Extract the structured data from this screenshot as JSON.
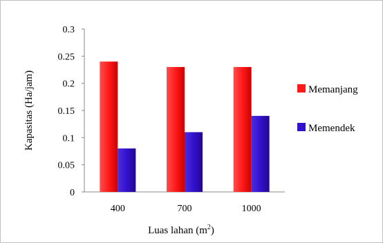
{
  "chart_data": {
    "type": "bar",
    "title": "",
    "categories": [
      "400",
      "700",
      "1000"
    ],
    "series": [
      {
        "name": "Memanjang",
        "values": [
          0.24,
          0.23,
          0.23
        ],
        "color": "#ff1a1a"
      },
      {
        "name": "Memendek",
        "values": [
          0.08,
          0.11,
          0.14
        ],
        "color": "#3311cc"
      }
    ],
    "ylabel": "Kapasitas (Ha/jam)",
    "xlabel": {
      "text": "Luas lahan (m",
      "sup": "2",
      "end": ")"
    },
    "ylim": [
      0,
      0.3
    ],
    "yticks": [
      "0",
      "0.05",
      "0.1",
      "0.15",
      "0.2",
      "0.25",
      "0.3"
    ],
    "grid": false,
    "legend_position": "right"
  }
}
